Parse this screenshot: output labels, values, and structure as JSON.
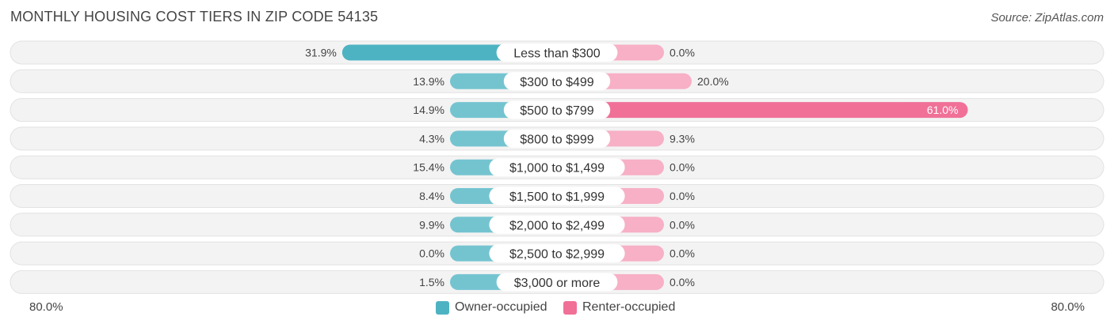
{
  "chart_data": {
    "type": "bar",
    "orientation": "horizontal-diverging",
    "title": "MONTHLY HOUSING COST TIERS IN ZIP CODE 54135",
    "source": "Source: ZipAtlas.com",
    "categories": [
      "Less than $300",
      "$300 to $499",
      "$500 to $799",
      "$800 to $999",
      "$1,000 to $1,499",
      "$1,500 to $1,999",
      "$2,000 to $2,499",
      "$2,500 to $2,999",
      "$3,000 or more"
    ],
    "series": [
      {
        "name": "Owner-occupied",
        "color": "#4db3c3",
        "values": [
          31.9,
          13.9,
          14.9,
          4.3,
          15.4,
          8.4,
          9.9,
          0.0,
          1.5
        ],
        "labels": [
          "31.9%",
          "13.9%",
          "14.9%",
          "4.3%",
          "15.4%",
          "8.4%",
          "9.9%",
          "0.0%",
          "1.5%"
        ]
      },
      {
        "name": "Renter-occupied",
        "color": "#f07098",
        "values": [
          0.0,
          20.0,
          61.0,
          9.3,
          0.0,
          0.0,
          0.0,
          0.0,
          0.0
        ],
        "labels": [
          "0.0%",
          "20.0%",
          "61.0%",
          "9.3%",
          "0.0%",
          "0.0%",
          "0.0%",
          "0.0%",
          "0.0%"
        ]
      }
    ],
    "xlim": [
      -80,
      80
    ],
    "axis_labels": {
      "left": "80.0%",
      "right": "80.0%"
    },
    "legend_position": "bottom-center",
    "grid": false
  }
}
